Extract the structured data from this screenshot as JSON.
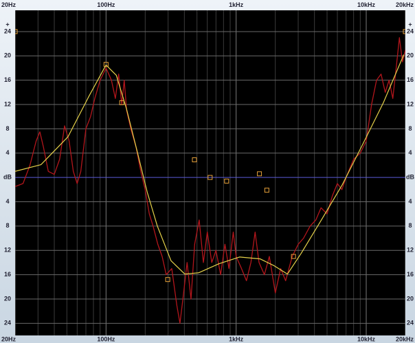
{
  "chart_data": {
    "type": "line",
    "x_scale": "log",
    "xlim": [
      20,
      20000
    ],
    "xticks": [
      {
        "value": 20,
        "label": "20Hz"
      },
      {
        "value": 100,
        "label": "100Hz"
      },
      {
        "value": 1000,
        "label": "1kHz"
      },
      {
        "value": 10000,
        "label": "10kHz"
      },
      {
        "value": 20000,
        "label": "20kHz"
      }
    ],
    "xticks_minor": [
      30,
      40,
      50,
      60,
      70,
      80,
      90,
      200,
      300,
      400,
      500,
      600,
      700,
      800,
      900,
      2000,
      3000,
      4000,
      5000,
      6000,
      7000,
      8000,
      9000
    ],
    "ylim": [
      -26,
      27.5
    ],
    "yticks": [
      24,
      20,
      16,
      12,
      8,
      4,
      {
        "value": 0,
        "label": "dB"
      },
      {
        "value": -4,
        "label": "4"
      },
      {
        "value": -8,
        "label": "8"
      },
      {
        "value": -12,
        "label": "12"
      },
      {
        "value": -16,
        "label": "16"
      },
      {
        "value": -20,
        "label": "20"
      },
      {
        "value": -24,
        "label": "24"
      }
    ],
    "y_top_marker": "+",
    "grid": true,
    "zero_line_color": "#5a5ad8",
    "series": [
      {
        "color": "#b3161c",
        "x": [
          20,
          23,
          26,
          29,
          31,
          33,
          36,
          40,
          44,
          48,
          52,
          56,
          60,
          64,
          70,
          76,
          82,
          90,
          100,
          110,
          118,
          125,
          132,
          138,
          144,
          155,
          170,
          185,
          200,
          215,
          230,
          250,
          270,
          290,
          320,
          350,
          370,
          390,
          420,
          450,
          480,
          520,
          560,
          600,
          650,
          700,
          760,
          820,
          880,
          950,
          1000,
          1100,
          1200,
          1300,
          1400,
          1500,
          1650,
          1800,
          2000,
          2200,
          2400,
          2700,
          3000,
          3300,
          3700,
          4100,
          4500,
          5000,
          5500,
          6000,
          6500,
          7000,
          8000,
          9000,
          10000,
          11000,
          12000,
          13000,
          14000,
          15000,
          16000,
          17000,
          18000,
          19000,
          20000
        ],
        "values": [
          -1.5,
          -1,
          2,
          6,
          7.5,
          5,
          1,
          0.5,
          3,
          8.5,
          6,
          1,
          -1,
          1,
          8,
          10,
          13,
          16,
          18,
          16,
          13,
          17,
          12,
          16,
          11,
          8,
          5,
          1,
          -2,
          -6,
          -8,
          -11,
          -13,
          -16,
          -15,
          -21,
          -24,
          -20,
          -14,
          -20,
          -11,
          -7,
          -14,
          -9,
          -14,
          -12,
          -16,
          -11,
          -15,
          -9,
          -13,
          -15,
          -17,
          -14,
          -9,
          -14,
          -16,
          -13,
          -19,
          -15,
          -17,
          -13,
          -11,
          -10,
          -8,
          -7,
          -5,
          -6,
          -3,
          -1,
          -2,
          0,
          3,
          4,
          6,
          12,
          16,
          17,
          14,
          16,
          13,
          18,
          23,
          19,
          21
        ]
      },
      {
        "color": "#e6d24a",
        "x": [
          20,
          31.6,
          51,
          74,
          100,
          120,
          144,
          173,
          207,
          248,
          316,
          403,
          514,
          738,
          1062,
          1527,
          1945,
          2481,
          3162,
          4550,
          6546,
          9416,
          13550,
          19460
        ],
        "values": [
          1,
          2.1,
          6.7,
          13.4,
          18.5,
          16.8,
          11.2,
          4.4,
          -2.4,
          -8,
          -13.7,
          -15.9,
          -15.7,
          -14.2,
          -13.1,
          -13.4,
          -14.5,
          -15.9,
          -12.5,
          -6.9,
          -1.2,
          5.5,
          12.3,
          20.2
        ]
      }
    ],
    "filter_points": {
      "color": "#e8a23a",
      "x": [
        20,
        100,
        132,
        298,
        478,
        631,
        845,
        1510,
        1722,
        2760,
        20000
      ],
      "values": [
        24,
        18.6,
        12.3,
        -16.8,
        2.9,
        0,
        -0.6,
        0.6,
        -2.1,
        -13,
        24
      ]
    }
  }
}
